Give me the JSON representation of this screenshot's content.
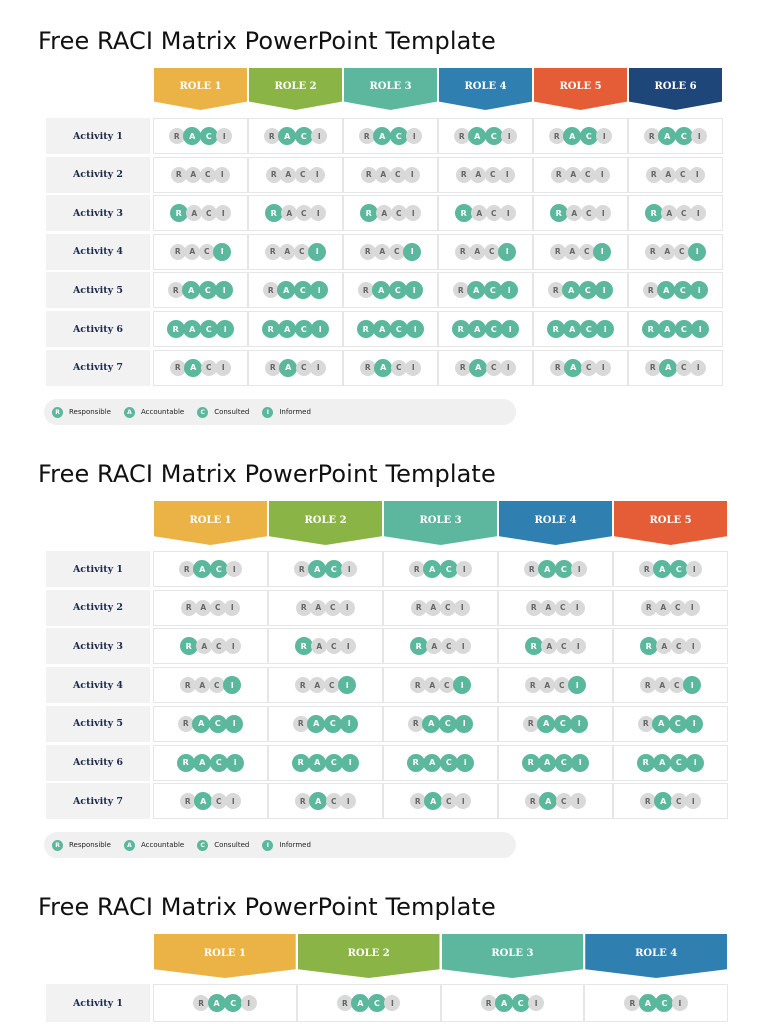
{
  "page_title": "Free RACI Matrix PowerPoint Template",
  "letters": [
    "R",
    "A",
    "C",
    "I"
  ],
  "activities": [
    "Activity 1",
    "Activity 2",
    "Activity 3",
    "Activity 4",
    "Activity 5",
    "Activity 6",
    "Activity 7"
  ],
  "activity_states": [
    [
      false,
      true,
      true,
      false
    ],
    [
      false,
      false,
      false,
      false
    ],
    [
      true,
      false,
      false,
      false
    ],
    [
      false,
      false,
      false,
      true
    ],
    [
      false,
      true,
      true,
      true
    ],
    [
      true,
      true,
      true,
      true
    ],
    [
      false,
      true,
      false,
      false
    ]
  ],
  "legend": [
    {
      "letter": "R",
      "label": "Responsible"
    },
    {
      "letter": "A",
      "label": "Accountable"
    },
    {
      "letter": "C",
      "label": "Consulted"
    },
    {
      "letter": "I",
      "label": "Informed"
    }
  ],
  "colors": {
    "role_1": "#ebb345",
    "role_2": "#8ab546",
    "role_3": "#5db79f",
    "role_4": "#2f7fb1",
    "role_5": "#e55d37",
    "role_6": "#1f4679",
    "active_circle": "#5bb89c",
    "inactive_circle": "#d9d9d9"
  },
  "matrices": [
    {
      "title": "Free RACI Matrix PowerPoint Template",
      "roles": [
        {
          "label": "ROLE 1",
          "color": "#ebb345"
        },
        {
          "label": "ROLE 2",
          "color": "#8ab546"
        },
        {
          "label": "ROLE 3",
          "color": "#5db79f"
        },
        {
          "label": "ROLE 4",
          "color": "#2f7fb1"
        },
        {
          "label": "ROLE 5",
          "color": "#e55d37"
        },
        {
          "label": "ROLE 6",
          "color": "#1f4679"
        }
      ],
      "activity_count": 7,
      "show_legend": true
    },
    {
      "title": "Free RACI Matrix PowerPoint Template",
      "roles": [
        {
          "label": "ROLE 1",
          "color": "#ebb345"
        },
        {
          "label": "ROLE 2",
          "color": "#8ab546"
        },
        {
          "label": "ROLE 3",
          "color": "#5db79f"
        },
        {
          "label": "ROLE 4",
          "color": "#2f7fb1"
        },
        {
          "label": "ROLE 5",
          "color": "#e55d37"
        }
      ],
      "activity_count": 7,
      "show_legend": true
    },
    {
      "title": "Free RACI Matrix PowerPoint Template",
      "roles": [
        {
          "label": "ROLE 1",
          "color": "#ebb345"
        },
        {
          "label": "ROLE 2",
          "color": "#8ab546"
        },
        {
          "label": "ROLE 3",
          "color": "#5db79f"
        },
        {
          "label": "ROLE 4",
          "color": "#2f7fb1"
        }
      ],
      "activity_count": 1,
      "show_legend": false
    }
  ]
}
